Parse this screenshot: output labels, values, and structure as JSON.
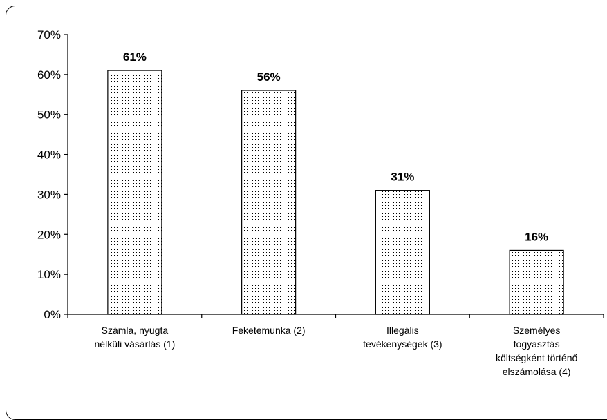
{
  "chart_data": {
    "type": "bar",
    "title": "",
    "xlabel": "",
    "ylabel": "",
    "ylim": [
      0,
      70
    ],
    "y_ticks": [
      "0%",
      "10%",
      "20%",
      "30%",
      "40%",
      "50%",
      "60%",
      "70%"
    ],
    "categories": [
      [
        "Számla, nyugta",
        "nélküli vásárlás (1)"
      ],
      [
        "Feketemunka (2)"
      ],
      [
        "Illegális",
        "tevékenységek (3)"
      ],
      [
        "Személyes",
        "fogyasztás",
        "költségként történő",
        "elszámolása (4)"
      ]
    ],
    "values": [
      61,
      56,
      31,
      16
    ],
    "data_labels": [
      "61%",
      "56%",
      "31%",
      "16%"
    ],
    "grid": false,
    "legend": false,
    "colors": {
      "bar_fill": "#ffffff",
      "bar_dots": "#000000",
      "axis": "#000000"
    }
  }
}
